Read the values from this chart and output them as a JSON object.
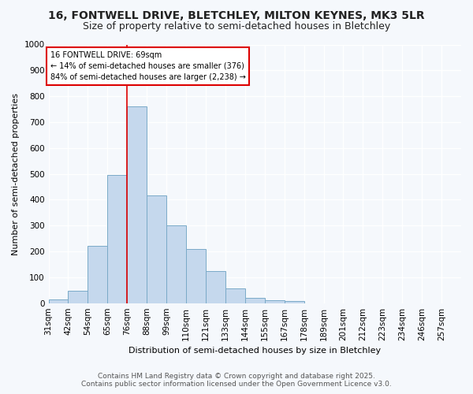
{
  "title_line1": "16, FONTWELL DRIVE, BLETCHLEY, MILTON KEYNES, MK3 5LR",
  "title_line2": "Size of property relative to semi-detached houses in Bletchley",
  "xlabel": "Distribution of semi-detached houses by size in Bletchley",
  "ylabel": "Number of semi-detached properties",
  "bin_labels": [
    "31sqm",
    "42sqm",
    "54sqm",
    "65sqm",
    "76sqm",
    "88sqm",
    "99sqm",
    "110sqm",
    "121sqm",
    "133sqm",
    "144sqm",
    "155sqm",
    "167sqm",
    "178sqm",
    "189sqm",
    "201sqm",
    "212sqm",
    "223sqm",
    "234sqm",
    "246sqm",
    "257sqm"
  ],
  "bar_heights": [
    15,
    47,
    220,
    497,
    760,
    415,
    300,
    208,
    125,
    57,
    20,
    12,
    7,
    0,
    0,
    0,
    0,
    0,
    0,
    0
  ],
  "bar_color": "#c5d8ed",
  "bar_edge_color": "#7aaac8",
  "property_bin_index": 3,
  "property_line_color": "#dd0000",
  "annotation_text_line1": "16 FONTWELL DRIVE: 69sqm",
  "annotation_text_line2": "← 14% of semi-detached houses are smaller (376)",
  "annotation_text_line3": "84% of semi-detached houses are larger (2,238) →",
  "annotation_box_color": "#ffffff",
  "annotation_box_edge_color": "#dd0000",
  "ylim": [
    0,
    1000
  ],
  "yticks": [
    0,
    100,
    200,
    300,
    400,
    500,
    600,
    700,
    800,
    900,
    1000
  ],
  "fig_background_color": "#f5f8fc",
  "plot_background_color": "#f5f8fc",
  "grid_color": "#ffffff",
  "footer_line1": "Contains HM Land Registry data © Crown copyright and database right 2025.",
  "footer_line2": "Contains public sector information licensed under the Open Government Licence v3.0.",
  "title1_fontsize": 10,
  "title2_fontsize": 9,
  "axis_label_fontsize": 8,
  "tick_fontsize": 7.5,
  "footer_fontsize": 6.5
}
